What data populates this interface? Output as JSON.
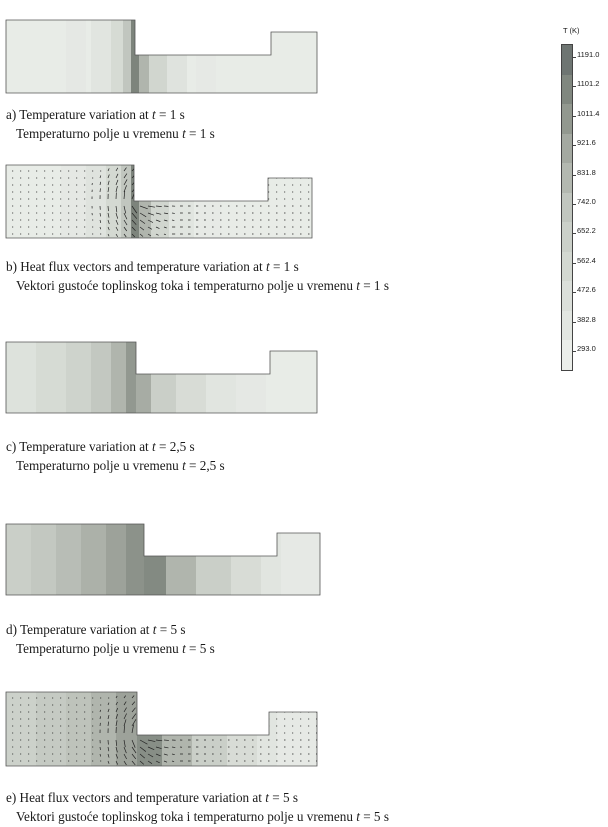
{
  "legend": {
    "title": "T (K)",
    "ticks": [
      "1191.0",
      "1101.2",
      "1011.4",
      "921.6",
      "831.8",
      "742.0",
      "652.2",
      "562.4",
      "472.6",
      "382.8",
      "293.0"
    ],
    "colors": [
      "#6e7572",
      "#80877f",
      "#92988f",
      "#a4a9a1",
      "#b3b8b0",
      "#c1c6bf",
      "#cbd0c9",
      "#d3d8d1",
      "#dbdfda",
      "#e2e6e1",
      "#ebeeea"
    ]
  },
  "panels": [
    {
      "id": "a",
      "caption_prefix": "a) Temperature variation at ",
      "caption_var": "t",
      "caption_suffix": " = 1 s",
      "sub_prefix": "Temperaturno polje u vremenu ",
      "sub_var": "t",
      "sub_suffix": " = 1 s"
    },
    {
      "id": "b",
      "caption_prefix": "b) Heat flux vectors and temperature variation at ",
      "caption_var": "t",
      "caption_suffix": " = 1 s",
      "sub_prefix": "Vektori gustoće toplinskog toka i temperaturno polje u vremenu ",
      "sub_var": "t",
      "sub_suffix": " = 1 s"
    },
    {
      "id": "c",
      "caption_prefix": "c) Temperature variation at ",
      "caption_var": "t",
      "caption_suffix": " = 2,5 s",
      "sub_prefix": "Temperaturno polje u vremenu ",
      "sub_var": "t",
      "sub_suffix": " = 2,5 s"
    },
    {
      "id": "d",
      "caption_prefix": "d) Temperature variation at ",
      "caption_var": "t",
      "caption_suffix": " = 5 s",
      "sub_prefix": "Temperaturno polje u vremenu ",
      "sub_var": "t",
      "sub_suffix": " = 5 s"
    },
    {
      "id": "e",
      "caption_prefix": "e) Heat flux vectors and temperature variation at ",
      "caption_var": "t",
      "caption_suffix": " = 5 s",
      "sub_prefix": "Vektori gustoće toplinskog toka i temperaturno polje u vremenu ",
      "sub_var": "t",
      "sub_suffix": " = 5 s"
    }
  ]
}
